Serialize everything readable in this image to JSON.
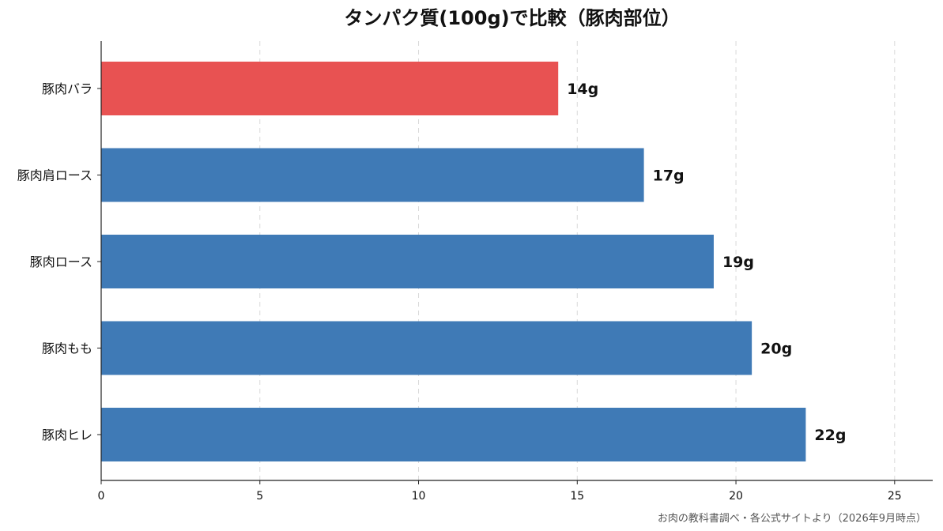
{
  "chart_data": {
    "type": "bar",
    "orientation": "horizontal",
    "title": "タンパク質(100g)で比較（豚肉部位）",
    "categories": [
      "豚肉バラ",
      "豚肉肩ロース",
      "豚肉ロース",
      "豚肉もも",
      "豚肉ヒレ"
    ],
    "values": [
      14.4,
      17.1,
      19.3,
      20.5,
      22.2
    ],
    "data_labels": [
      "14g",
      "17g",
      "19g",
      "20g",
      "22g"
    ],
    "bar_colors": [
      "#e85252",
      "#3f7ab6",
      "#3f7ab6",
      "#3f7ab6",
      "#3f7ab6"
    ],
    "xlim": [
      0,
      26.2
    ],
    "x_ticks": [
      0,
      5,
      10,
      15,
      20,
      25
    ],
    "x_tick_labels": [
      "0",
      "5",
      "10",
      "15",
      "20",
      "25"
    ],
    "grid": "vertical-dashed",
    "legend": "none",
    "xlabel": "",
    "ylabel": ""
  },
  "source_note": "お肉の教科書調べ・各公式サイトより（2026年9月時点）"
}
